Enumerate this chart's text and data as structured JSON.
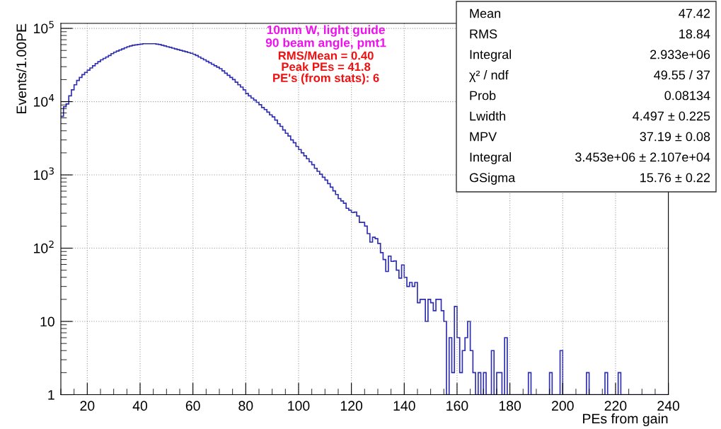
{
  "chart_data": {
    "type": "histogram",
    "ylabel": "Events/1.00PE",
    "xlabel": "PEs from gain",
    "color": "#2e2eb0",
    "bins": [
      10,
      11,
      12,
      13,
      14,
      15,
      16,
      17,
      18,
      19,
      20,
      21,
      22,
      23,
      24,
      25,
      26,
      27,
      28,
      29,
      30,
      31,
      32,
      33,
      34,
      35,
      36,
      37,
      38,
      39,
      40,
      41,
      42,
      43,
      44,
      45,
      46,
      47,
      48,
      49,
      50,
      51,
      52,
      53,
      54,
      55,
      56,
      57,
      58,
      59,
      60,
      61,
      62,
      63,
      64,
      65,
      66,
      67,
      68,
      69,
      70,
      71,
      72,
      73,
      74,
      75,
      76,
      77,
      78,
      79,
      80,
      81,
      82,
      83,
      84,
      85,
      86,
      87,
      88,
      89,
      90,
      91,
      92,
      93,
      94,
      95,
      96,
      97,
      98,
      99,
      100,
      101,
      102,
      103,
      104,
      105,
      106,
      107,
      108,
      109,
      110,
      111,
      112,
      113,
      114,
      115,
      116,
      117,
      118,
      119,
      120,
      121,
      122,
      123,
      124,
      125,
      126,
      127,
      128,
      129,
      130,
      131,
      132,
      133,
      134,
      135,
      136,
      137,
      138,
      139,
      140,
      141,
      142,
      143,
      144,
      145,
      146,
      147,
      148,
      149,
      150,
      151,
      152,
      153,
      154,
      155,
      156,
      157,
      158,
      159,
      160,
      161,
      162,
      163,
      164,
      165,
      166,
      167,
      168,
      169,
      170,
      171,
      172,
      173,
      174,
      175,
      176,
      177,
      178,
      179,
      180,
      181,
      182,
      183,
      184,
      185,
      186,
      187,
      188,
      189,
      190,
      191,
      192,
      193,
      194,
      195,
      196,
      197,
      198,
      199,
      200,
      201,
      202,
      203,
      204,
      205,
      206,
      207,
      208,
      209,
      210,
      211,
      212,
      213,
      214,
      215,
      216,
      217,
      218,
      219,
      220,
      221,
      222,
      223,
      224,
      225,
      226,
      227,
      228,
      229,
      230,
      231,
      232,
      233,
      234,
      235,
      236,
      237,
      238,
      239,
      240
    ],
    "values": [
      6300,
      8500,
      9300,
      12000,
      14500,
      17000,
      19500,
      21400,
      23400,
      25100,
      26900,
      28800,
      30900,
      33100,
      35100,
      37200,
      38900,
      40700,
      42700,
      45200,
      47300,
      49000,
      50700,
      52500,
      54300,
      56200,
      57500,
      58900,
      59600,
      60300,
      61000,
      61700,
      61700,
      61700,
      61700,
      61700,
      61000,
      60300,
      58900,
      57500,
      56200,
      55000,
      53700,
      52500,
      51300,
      50100,
      49000,
      47900,
      46800,
      45700,
      44200,
      42700,
      40700,
      38900,
      37200,
      35500,
      33900,
      32400,
      30900,
      29500,
      28200,
      26300,
      24500,
      22900,
      21400,
      20000,
      18400,
      17000,
      15800,
      14500,
      12900,
      12000,
      11200,
      10500,
      9800,
      9100,
      8300,
      7800,
      7200,
      6600,
      6200,
      5600,
      5000,
      4600,
      4100,
      3700,
      3400,
      3000,
      2750,
      2450,
      2220,
      2000,
      1820,
      1660,
      1510,
      1380,
      1230,
      1120,
      1020,
      930,
      850,
      760,
      680,
      605,
      540,
      475,
      440,
      410,
      350,
      330,
      306,
      310,
      275,
      225,
      225,
      200,
      158,
      121,
      141,
      135,
      116,
      87,
      70,
      48,
      78,
      66,
      67,
      50,
      39,
      59,
      40,
      30,
      34,
      30,
      34,
      18,
      20,
      20,
      10,
      20,
      18,
      14,
      20,
      20,
      14,
      10,
      null,
      6,
      2,
      16,
      6,
      2,
      4,
      6,
      10,
      4,
      2,
      null,
      2,
      null,
      2,
      null,
      null,
      4,
      null,
      2,
      2,
      null,
      6,
      null,
      null,
      null,
      null,
      null,
      null,
      null,
      null,
      2,
      null,
      null,
      null,
      null,
      null,
      null,
      null,
      2,
      null,
      null,
      null,
      4,
      null,
      null,
      null,
      null,
      null,
      null,
      null,
      null,
      null,
      2,
      null,
      null,
      null,
      null,
      null,
      null,
      2,
      null,
      null,
      null,
      null,
      2,
      null,
      null,
      null,
      null,
      null,
      null,
      null,
      null,
      null,
      null,
      null,
      null,
      null,
      null,
      null,
      null,
      null,
      null
    ],
    "xlim": [
      10,
      240
    ],
    "xticks": [
      20,
      40,
      60,
      80,
      100,
      120,
      140,
      160,
      180,
      200,
      220,
      240
    ],
    "log": "y",
    "ylim": [
      1,
      117000
    ],
    "yticks": [
      1,
      10,
      {
        "value": 100,
        "label": "10$^{2}$"
      },
      {
        "value": 1000,
        "label": "10$^{3}$"
      },
      {
        "value": 10000,
        "label": "10$^{4}$"
      },
      {
        "value": 100000,
        "label": "10$^{5}$"
      }
    ],
    "grid": true,
    "annotations": [
      "10mm W, light guide",
      "90 beam angle, pmt1",
      "RMS/Mean = 0.40",
      "Peak PEs = 41.8",
      "PE's (from stats): 6",
      "Mean\t47.42",
      "RMS\t18.84",
      "Integral\t2.933e+06",
      "χ² / ndf\t49.55 / 37",
      "Prob\t0.08134",
      "Lwidth\t4.497 ± 0.225",
      "MPV\t37.19 ± 0.08",
      "Integral\t3.453e+06 ± 2.107e+04",
      "GSigma\t15.76 ± 0.22"
    ]
  }
}
